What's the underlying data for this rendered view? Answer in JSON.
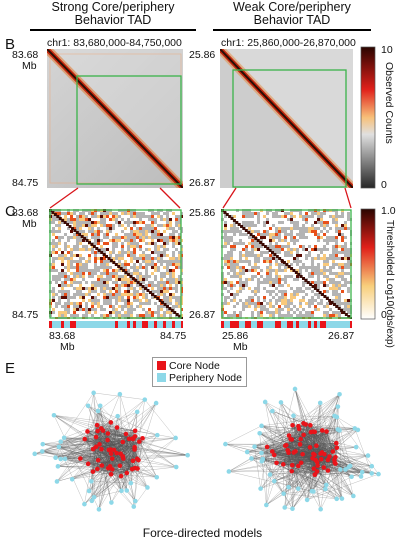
{
  "headers": {
    "left_line1": "Strong Core/periphery",
    "left_line2": "Behavior TAD",
    "right_line1": "Weak Core/periphery",
    "right_line2": "Behavior TAD"
  },
  "panel_letters": {
    "b": "B",
    "c": "C",
    "e": "E"
  },
  "panel_b": {
    "left_coord": "chr1: 83,680,000-84,750,000",
    "right_coord": "chr1: 25,860,000-26,870,000",
    "left_top": "83.68",
    "left_unit": "Mb",
    "left_bottom": "84.75",
    "right_top": "25.86",
    "right_bottom": "26.87",
    "colorbar_max": "10",
    "colorbar_min": "0",
    "colorbar_label": "Observed Counts"
  },
  "panel_c": {
    "left_top": "83.68",
    "left_unit": "Mb",
    "left_bottom": "84.75",
    "right_top": "25.86",
    "right_bottom": "26.87",
    "colorbar_max": "1.0",
    "colorbar_min": "0",
    "colorbar_label": "Thresholded Log10(obs/exp)",
    "x_left_start": "83.68",
    "x_left_end": "84.75",
    "x_right_start": "25.86",
    "x_right_end": "26.87",
    "x_unit": "Mb"
  },
  "panel_e": {
    "legend_core": "Core Node",
    "legend_periphery": "Periphery Node",
    "caption": "Force-directed models"
  },
  "colors": {
    "core": "#e8141a",
    "periphery": "#8dd8e8",
    "tad_box": "#3bb34a",
    "guide_line": "#d9141a"
  }
}
